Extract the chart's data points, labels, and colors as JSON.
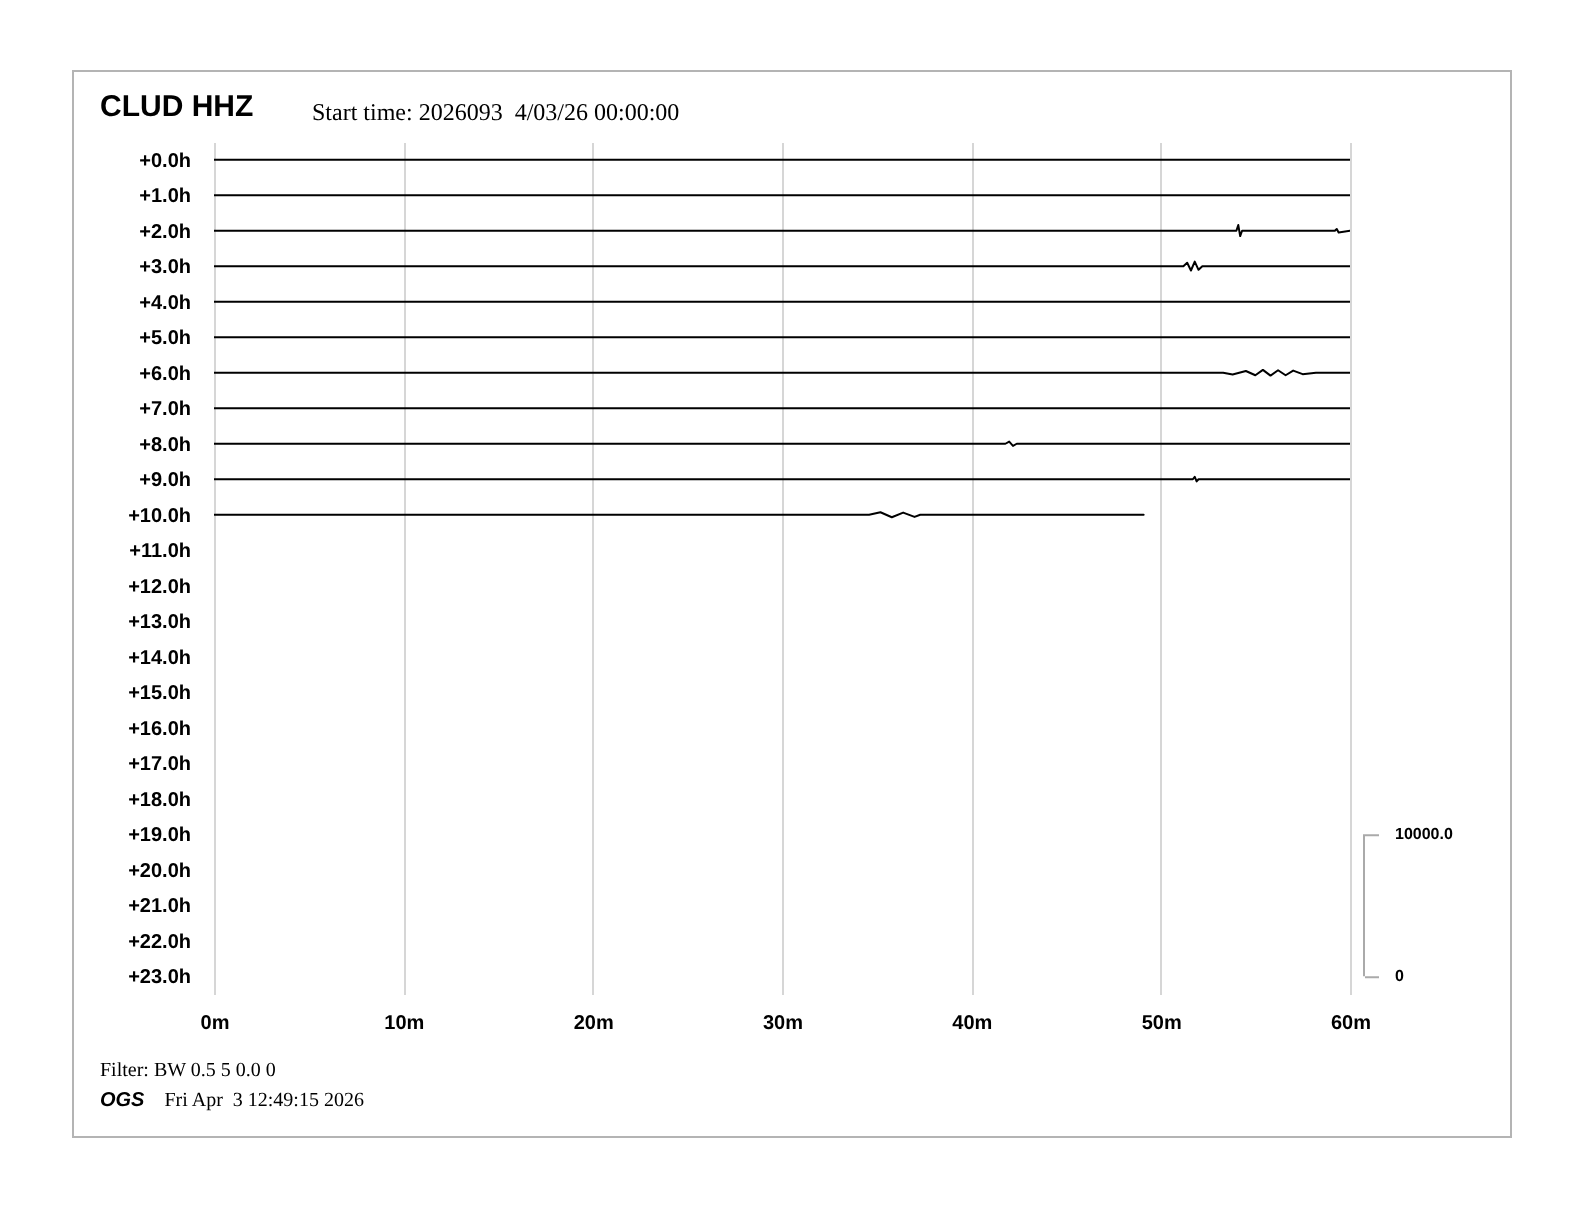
{
  "chart_data": {
    "type": "line",
    "title": "CLUD HHZ",
    "subtitle": "Start time: 2026093  4/03/26 00:00:00",
    "annotations": [
      "Filter: BW 0.5 5 0.0 0",
      "OGS",
      "Fri Apr  3 12:49:15 2026"
    ],
    "xlim": [
      0,
      60
    ],
    "xticks": [
      {
        "value": 0,
        "label": "0m"
      },
      {
        "value": 10,
        "label": "10m"
      },
      {
        "value": 20,
        "label": "20m"
      },
      {
        "value": 30,
        "label": "30m"
      },
      {
        "value": 40,
        "label": "40m"
      },
      {
        "value": 50,
        "label": "50m"
      },
      {
        "value": 60,
        "label": "60m"
      }
    ],
    "ylim": [
      23.5,
      -0.5
    ],
    "yticks": [
      {
        "value": 0,
        "label": "+0.0h"
      },
      {
        "value": 1,
        "label": "+1.0h"
      },
      {
        "value": 2,
        "label": "+2.0h"
      },
      {
        "value": 3,
        "label": "+3.0h"
      },
      {
        "value": 4,
        "label": "+4.0h"
      },
      {
        "value": 5,
        "label": "+5.0h"
      },
      {
        "value": 6,
        "label": "+6.0h"
      },
      {
        "value": 7,
        "label": "+7.0h"
      },
      {
        "value": 8,
        "label": "+8.0h"
      },
      {
        "value": 9,
        "label": "+9.0h"
      },
      {
        "value": 10,
        "label": "+10.0h"
      },
      {
        "value": 11,
        "label": "+11.0h"
      },
      {
        "value": 12,
        "label": "+12.0h"
      },
      {
        "value": 13,
        "label": "+13.0h"
      },
      {
        "value": 14,
        "label": "+14.0h"
      },
      {
        "value": 15,
        "label": "+15.0h"
      },
      {
        "value": 16,
        "label": "+16.0h"
      },
      {
        "value": 17,
        "label": "+17.0h"
      },
      {
        "value": 18,
        "label": "+18.0h"
      },
      {
        "value": 19,
        "label": "+19.0h"
      },
      {
        "value": 20,
        "label": "+20.0h"
      },
      {
        "value": 21,
        "label": "+21.0h"
      },
      {
        "value": 22,
        "label": "+22.0h"
      },
      {
        "value": 23,
        "label": "+23.0h"
      }
    ],
    "y2lim": [
      -1250,
      58750
    ],
    "y2ticks": [
      0,
      {
        "value": 10000,
        "label": "10000.0"
      }
    ],
    "grid": "x",
    "series": [
      {
        "color": "#000000",
        "x": [
          0,
          60
        ],
        "values": [
          0,
          0
        ]
      },
      {
        "color": "#000000",
        "x": [
          0,
          60
        ],
        "values": [
          1,
          1
        ]
      },
      {
        "color": "#000000",
        "x": [
          0,
          54.0,
          54.1,
          54.2,
          54.3,
          59.2,
          59.3,
          59.4,
          60
        ],
        "values": [
          2,
          2,
          1.84,
          2.15,
          2,
          2,
          1.95,
          2.05,
          2
        ]
      },
      {
        "color": "#000000",
        "x": [
          0,
          51.2,
          51.4,
          51.6,
          51.8,
          52.0,
          52.2,
          60
        ],
        "values": [
          3,
          3,
          2.9,
          3.12,
          2.87,
          3.1,
          3,
          3
        ]
      },
      {
        "color": "#000000",
        "x": [
          0,
          60
        ],
        "values": [
          4,
          4
        ]
      },
      {
        "color": "#000000",
        "x": [
          0,
          60
        ],
        "values": [
          5,
          5
        ]
      },
      {
        "color": "#000000",
        "x": [
          0,
          53.3,
          53.8,
          54.5,
          55.0,
          55.4,
          55.8,
          56.2,
          56.6,
          57.0,
          57.5,
          58.2,
          60
        ],
        "values": [
          6,
          6,
          6.05,
          5.95,
          6.07,
          5.92,
          6.08,
          5.93,
          6.07,
          5.94,
          6.04,
          6,
          6
        ]
      },
      {
        "color": "#000000",
        "x": [
          0,
          60
        ],
        "values": [
          7,
          7
        ]
      },
      {
        "color": "#000000",
        "x": [
          0,
          41.8,
          42.0,
          42.2,
          42.4,
          60
        ],
        "values": [
          8,
          8,
          7.94,
          8.06,
          8,
          8
        ]
      },
      {
        "color": "#000000",
        "x": [
          0,
          51.7,
          51.8,
          51.9,
          52.0,
          60
        ],
        "values": [
          9,
          9,
          8.93,
          9.06,
          9,
          9
        ]
      },
      {
        "color": "#000000",
        "x": [
          0,
          34.6,
          35.2,
          35.8,
          36.4,
          37.0,
          37.3,
          49.1
        ],
        "values": [
          10,
          10,
          9.93,
          10.07,
          9.94,
          10.06,
          10,
          10
        ]
      }
    ]
  }
}
